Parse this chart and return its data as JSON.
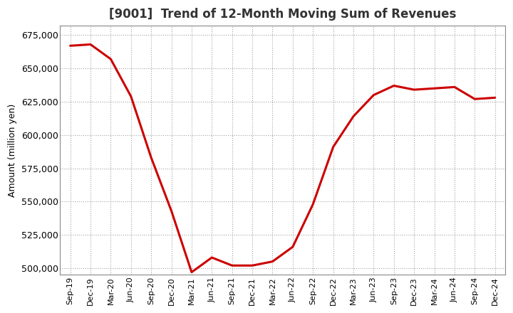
{
  "title": "[9001]  Trend of 12-Month Moving Sum of Revenues",
  "ylabel": "Amount (million yen)",
  "line_color": "#CC0000",
  "line_width": 2.2,
  "background_color": "#FFFFFF",
  "plot_bg_color": "#FFFFFF",
  "grid_color": "#999999",
  "ylim": [
    495000,
    682000
  ],
  "yticks": [
    500000,
    525000,
    550000,
    575000,
    600000,
    625000,
    650000,
    675000
  ],
  "labels": [
    "Sep-19",
    "Dec-19",
    "Mar-20",
    "Jun-20",
    "Sep-20",
    "Dec-20",
    "Mar-21",
    "Jun-21",
    "Sep-21",
    "Dec-21",
    "Mar-22",
    "Jun-22",
    "Sep-22",
    "Dec-22",
    "Mar-23",
    "Jun-23",
    "Sep-23",
    "Dec-23",
    "Mar-24",
    "Jun-24",
    "Sep-24",
    "Dec-24"
  ],
  "values": [
    667000,
    668000,
    657000,
    629000,
    583000,
    543000,
    497000,
    508000,
    502000,
    502000,
    505000,
    516000,
    548000,
    591000,
    614000,
    630000,
    637000,
    634000,
    635000,
    636000,
    627000,
    628000
  ]
}
